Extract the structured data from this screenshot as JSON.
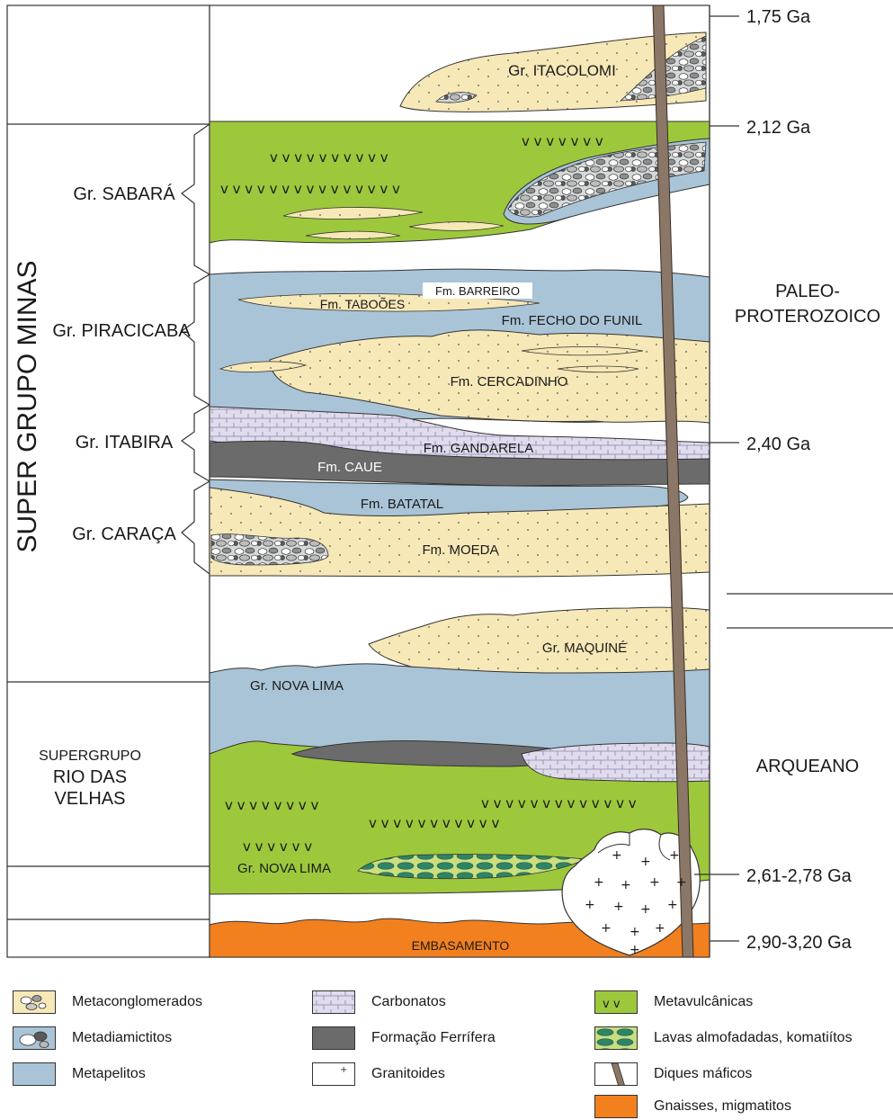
{
  "colors": {
    "metavolcanic": "#9dc83c",
    "metapelite": "#a9c4d6",
    "sandstone": "#f7e8b7",
    "iron_formation": "#6b6b6b",
    "carbonate": "#e0dced",
    "embasamento": "#f2801f",
    "dike": "#8b7767",
    "outline": "#3a3a3a"
  },
  "left_column": {
    "supergroup_minas": "SUPER GRUPO MINAS",
    "groups": {
      "sabara": "Gr. SABARÁ",
      "piracicaba": "Gr. PIRACICABA",
      "itabira": "Gr. ITABIRA",
      "caraca": "Gr. CARAÇA"
    },
    "rio_das_velhas": {
      "line1": "SUPERGRUPO",
      "line2": "RIO DAS",
      "line3": "VELHAS"
    }
  },
  "column_labels": {
    "itacolomi": "Gr. ITACOLOMI",
    "barreiro": "Fm. BARREIRO",
    "taboes": "Fm. TABOÕES",
    "fecho_do_funil": "Fm. FECHO DO FUNIL",
    "cercadinho": "Fm. CERCADINHO",
    "gandarela": "Fm. GANDARELA",
    "caue": "Fm. CAUE",
    "batatal": "Fm. BATATAL",
    "moeda": "Fm. MOEDA",
    "maquine": "Gr. MAQUINÉ",
    "nova_lima_upper": "Gr. NOVA LIMA",
    "nova_lima_lower": "Gr. NOVA LIMA",
    "embasamento": "EMBASAMENTO"
  },
  "ages": {
    "a1": "1,75 Ga",
    "a2": "2,12 Ga",
    "a3": "2,40 Ga",
    "a4": "2,61-2,78 Ga",
    "a5": "2,90-3,20 Ga"
  },
  "eras": {
    "paleo_line1": "PALEO-",
    "paleo_line2": "PROTEROZOICO",
    "arqueano": "ARQUEANO"
  },
  "legend": {
    "metaconglomerados": "Metaconglomerados",
    "metadiamictitos": "Metadiamictitos",
    "metapelitos": "Metapelitos",
    "carbonatos": "Carbonatos",
    "formacao_ferrifera": "Formação Ferrífera",
    "granitoides": "Granitoides",
    "metavulcanicas": "Metavulcânicas",
    "lavas": "Lavas almofadadas, komatiítos",
    "diques": "Diques máficos",
    "gnaisses": "Gnaisses, migmatitos"
  }
}
